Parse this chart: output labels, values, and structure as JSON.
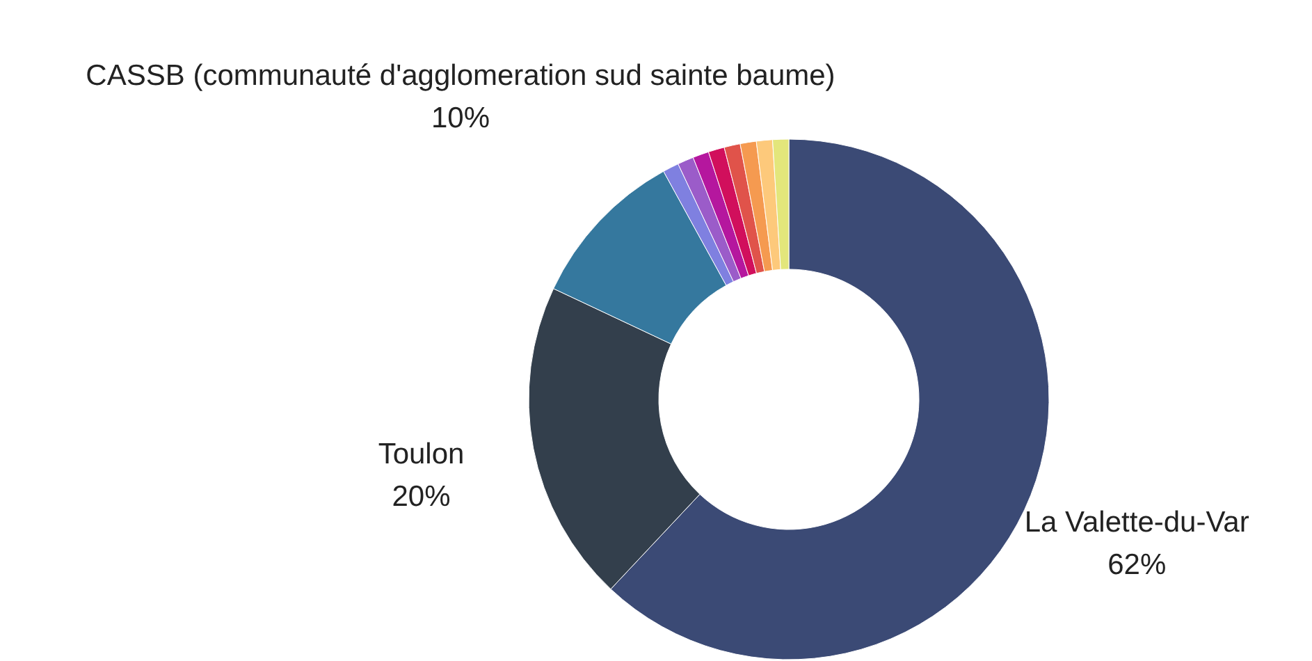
{
  "chart_data": {
    "type": "donut",
    "categories": [
      "La Valette-du-Var",
      "Toulon",
      "CASSB (communauté d'agglomeration sud sainte baume)",
      null,
      null,
      null,
      null,
      null,
      null,
      null,
      null
    ],
    "values": [
      62,
      20,
      10,
      1,
      1,
      1,
      1,
      1,
      1,
      1,
      1
    ],
    "colors": [
      "#3b4a75",
      "#333f4c",
      "#35789e",
      "#7f80e0",
      "#9b5cc9",
      "#b5179e",
      "#d10f5c",
      "#e0534a",
      "#f59a50",
      "#fdc97b",
      "#e3e67b"
    ],
    "value_labels": [
      "62%",
      "20%",
      "10%",
      null,
      null,
      null,
      null,
      null,
      null,
      null,
      null
    ],
    "legend": false
  }
}
